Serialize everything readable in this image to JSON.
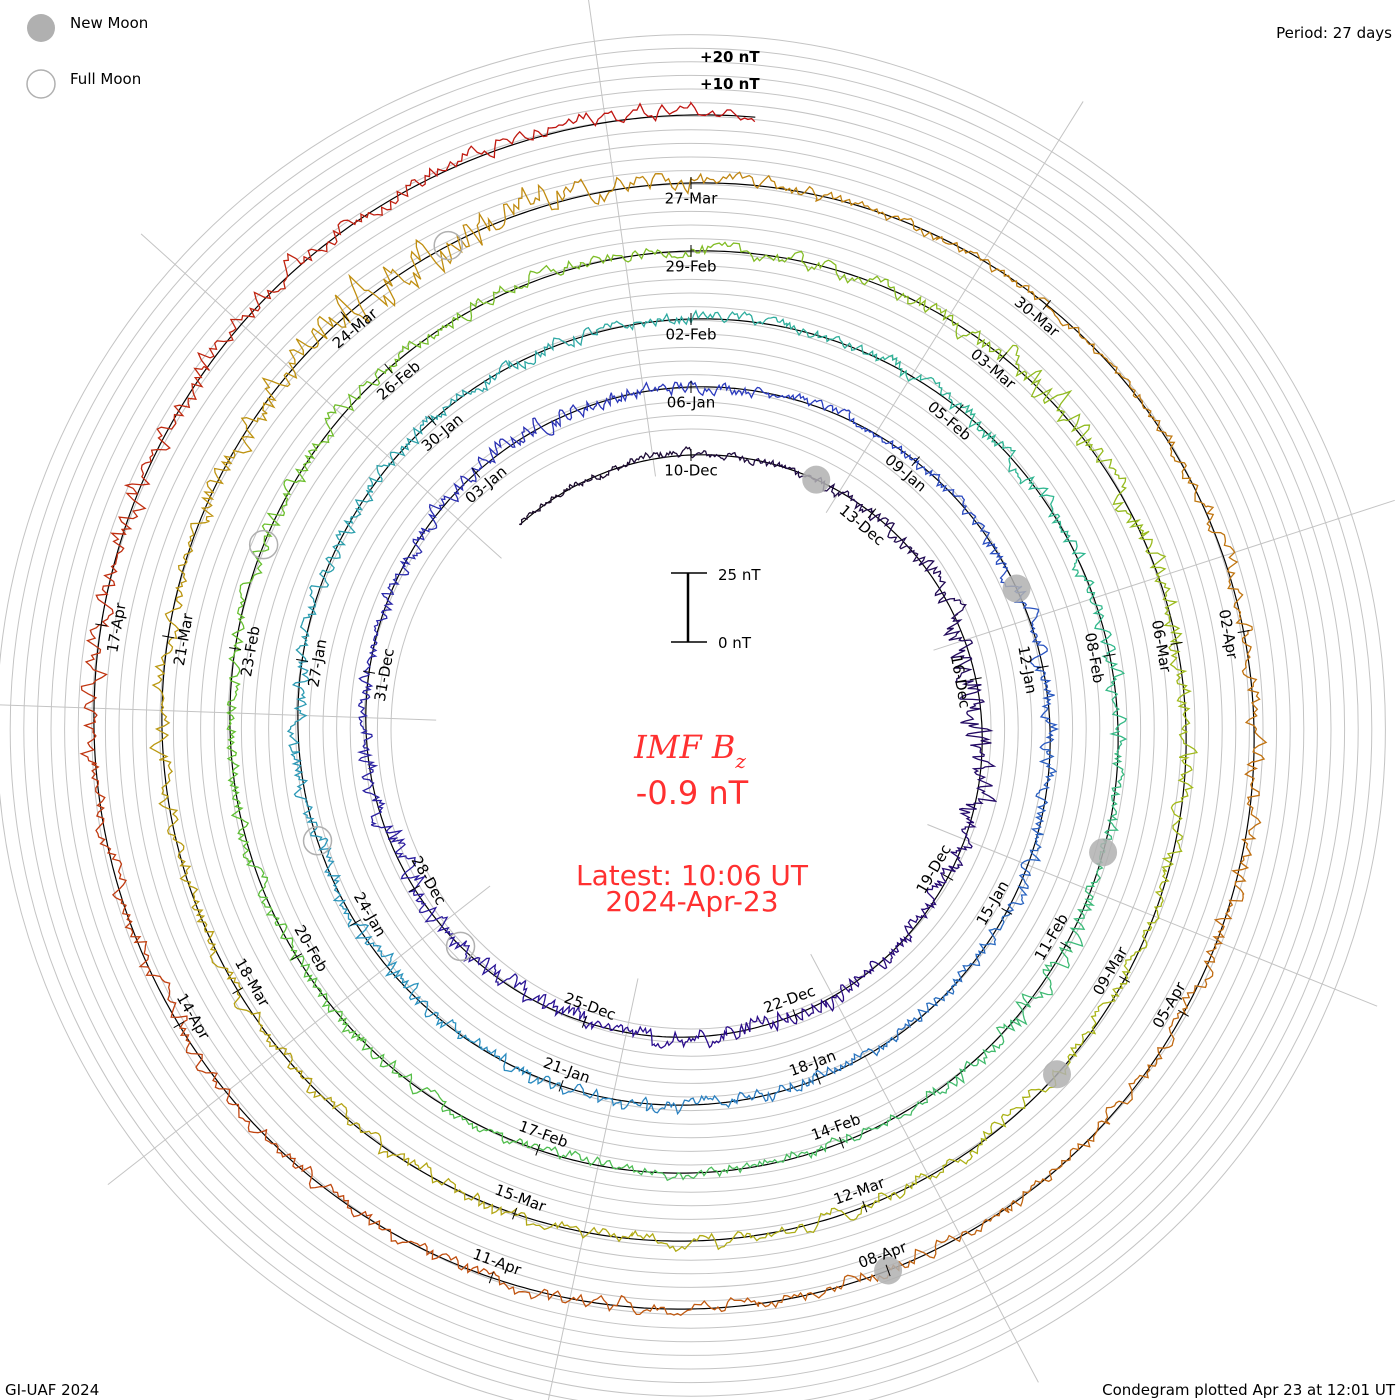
{
  "chart_data": {
    "type": "line",
    "subtype": "condegram-spiral",
    "title": "IMF Bz",
    "title_main": "IMF B",
    "title_sub": "z",
    "current_value": "-0.9 nT",
    "latest_time": "Latest: 10:06 UT",
    "latest_date": "2024-Apr-23",
    "period": "Period: 27 days",
    "credit": "GI-UAF 2024",
    "plotted": "Condegram plotted Apr 23 at 12:01 UT",
    "scale_bar": {
      "top_label": "25 nT",
      "bottom_label": "0 nT",
      "value_nT": 25
    },
    "grid_labels": [
      {
        "label": "+20 nT",
        "value": 20
      },
      {
        "label": "+10 nT",
        "value": 10
      }
    ],
    "legend": [
      {
        "label": "New Moon",
        "style": "filled"
      },
      {
        "label": "Full Moon",
        "style": "open"
      }
    ],
    "start_date": "2023-12-07",
    "period_days": 27,
    "units": "nT",
    "bz_daily_mean": [
      0,
      0,
      1,
      0,
      0,
      -1,
      0,
      1,
      -2,
      -1,
      0,
      0,
      -1,
      0,
      0,
      -1,
      1,
      0,
      -1,
      0,
      0,
      -1,
      0,
      1,
      0,
      0,
      0,
      1,
      0,
      0,
      0,
      1,
      0,
      0,
      -1,
      0,
      0,
      0,
      1,
      0,
      0,
      -1,
      0,
      0,
      0,
      0,
      0,
      -1,
      0,
      1,
      0,
      0,
      0,
      0,
      0,
      0,
      0,
      1,
      0,
      0,
      0,
      0,
      -1,
      0,
      0,
      1,
      0,
      0,
      0,
      0,
      0,
      -1,
      0,
      0,
      1,
      0,
      0,
      0,
      0,
      0,
      1,
      0,
      1,
      0,
      0,
      0,
      0,
      1,
      0,
      0,
      0,
      0,
      0,
      0,
      0,
      0,
      0,
      0,
      0,
      0,
      0,
      0,
      0,
      0,
      1,
      0,
      0,
      2,
      0,
      1,
      1,
      1,
      0,
      0,
      0,
      0,
      1,
      1,
      0,
      0,
      0,
      0,
      0,
      0,
      0,
      0,
      0,
      0,
      0,
      0,
      0,
      1,
      0,
      1,
      2,
      1,
      1,
      2,
      1
    ],
    "bz_daily_range": [
      2,
      3,
      3,
      3,
      3,
      4,
      5,
      6,
      8,
      10,
      9,
      6,
      5,
      5,
      6,
      7,
      5,
      5,
      6,
      6,
      6,
      7,
      6,
      5,
      4,
      5,
      6,
      6,
      6,
      5,
      4,
      3,
      3,
      4,
      5,
      6,
      6,
      5,
      5,
      4,
      4,
      4,
      5,
      5,
      5,
      5,
      5,
      6,
      6,
      5,
      6,
      5,
      5,
      5,
      5,
      5,
      4,
      4,
      4,
      5,
      6,
      6,
      5,
      6,
      5,
      6,
      7,
      6,
      4,
      4,
      4,
      4,
      4,
      5,
      5,
      5,
      5,
      5,
      5,
      6,
      6,
      5,
      5,
      4,
      5,
      5,
      6,
      10,
      9,
      7,
      6,
      6,
      5,
      5,
      5,
      4,
      5,
      5,
      4,
      5,
      5,
      5,
      5,
      5,
      6,
      5,
      8,
      12,
      16,
      14,
      8,
      5,
      4,
      3,
      3,
      4,
      5,
      6,
      7,
      6,
      5,
      5,
      5,
      5,
      5,
      5,
      5,
      5,
      5,
      6,
      5,
      7,
      8,
      8,
      7,
      6,
      6,
      6,
      4
    ],
    "date_labels": [
      {
        "label": "10-Dec",
        "day": 3
      },
      {
        "label": "13-Dec",
        "day": 6
      },
      {
        "label": "16-Dec",
        "day": 9
      },
      {
        "label": "19-Dec",
        "day": 12
      },
      {
        "label": "22-Dec",
        "day": 15
      },
      {
        "label": "25-Dec",
        "day": 18
      },
      {
        "label": "28-Dec",
        "day": 21
      },
      {
        "label": "31-Dec",
        "day": 24
      },
      {
        "label": "03-Jan",
        "day": 27
      },
      {
        "label": "06-Jan",
        "day": 30
      },
      {
        "label": "09-Jan",
        "day": 33
      },
      {
        "label": "12-Jan",
        "day": 36
      },
      {
        "label": "15-Jan",
        "day": 39
      },
      {
        "label": "18-Jan",
        "day": 42
      },
      {
        "label": "21-Jan",
        "day": 45
      },
      {
        "label": "24-Jan",
        "day": 48
      },
      {
        "label": "27-Jan",
        "day": 51
      },
      {
        "label": "30-Jan",
        "day": 54
      },
      {
        "label": "02-Feb",
        "day": 57
      },
      {
        "label": "05-Feb",
        "day": 60
      },
      {
        "label": "08-Feb",
        "day": 63
      },
      {
        "label": "11-Feb",
        "day": 66
      },
      {
        "label": "14-Feb",
        "day": 69
      },
      {
        "label": "17-Feb",
        "day": 72
      },
      {
        "label": "20-Feb",
        "day": 75
      },
      {
        "label": "23-Feb",
        "day": 78
      },
      {
        "label": "26-Feb",
        "day": 81
      },
      {
        "label": "29-Feb",
        "day": 84
      },
      {
        "label": "03-Mar",
        "day": 87
      },
      {
        "label": "06-Mar",
        "day": 90
      },
      {
        "label": "09-Mar",
        "day": 93
      },
      {
        "label": "12-Mar",
        "day": 96
      },
      {
        "label": "15-Mar",
        "day": 99
      },
      {
        "label": "18-Mar",
        "day": 102
      },
      {
        "label": "21-Mar",
        "day": 105
      },
      {
        "label": "24-Mar",
        "day": 108
      },
      {
        "label": "27-Mar",
        "day": 111
      },
      {
        "label": "30-Mar",
        "day": 114
      },
      {
        "label": "02-Apr",
        "day": 117
      },
      {
        "label": "05-Apr",
        "day": 120
      },
      {
        "label": "08-Apr",
        "day": 123
      },
      {
        "label": "11-Apr",
        "day": 126
      },
      {
        "label": "14-Apr",
        "day": 129
      },
      {
        "label": "17-Apr",
        "day": 132
      }
    ],
    "new_moons_day": [
      5,
      35,
      65,
      94,
      123
    ],
    "full_moons_day": [
      20,
      49,
      79,
      109
    ],
    "color_stops": [
      "#1a0a28",
      "#2a0a8a",
      "#2a3cc0",
      "#2a90c0",
      "#30b890",
      "#60c030",
      "#a8b818",
      "#c09010",
      "#c06010",
      "#c01010"
    ]
  }
}
